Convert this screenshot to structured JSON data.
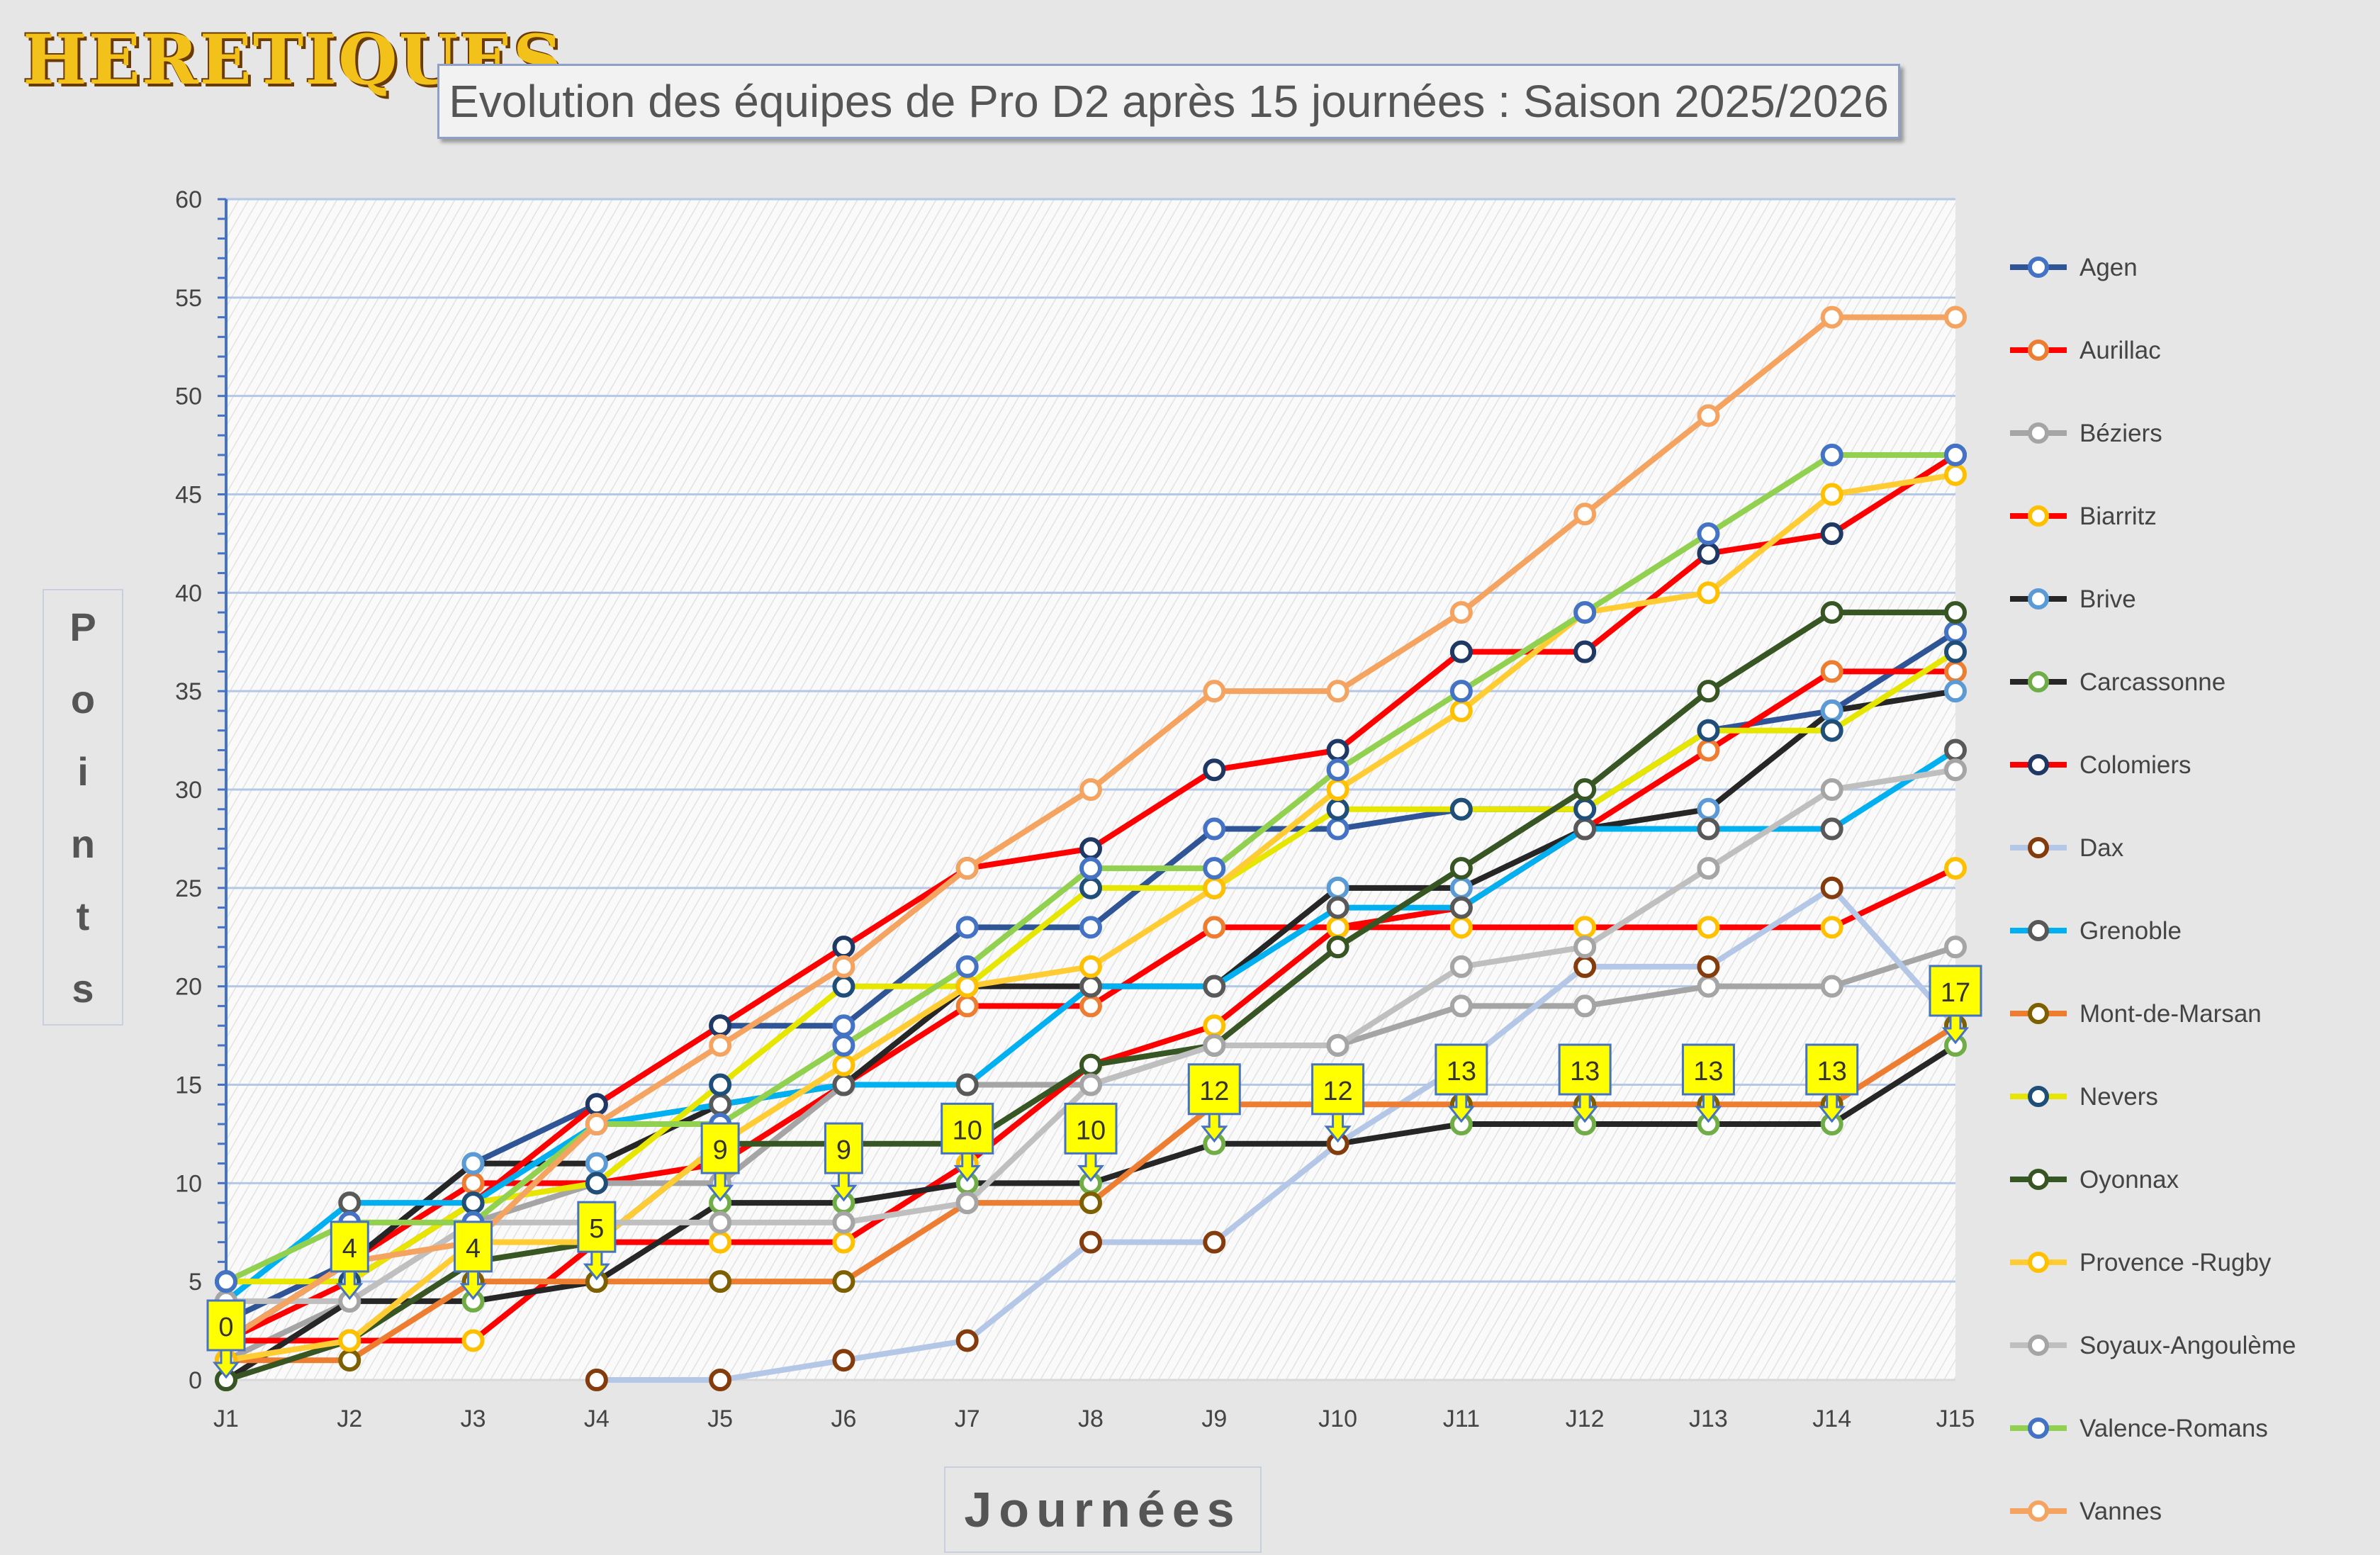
{
  "logo_text": "HERETIQUES",
  "chart_data": {
    "type": "line",
    "title": "Evolution des équipes de Pro D2 après 15 journées : Saison 2025/2026",
    "xlabel": "Journées",
    "ylabel": "Points",
    "ylim": [
      0,
      60
    ],
    "yticks": [
      0,
      5,
      10,
      15,
      20,
      25,
      30,
      35,
      40,
      45,
      50,
      55,
      60
    ],
    "grid": true,
    "legend": "right",
    "categories": [
      "J1",
      "J2",
      "J3",
      "J4",
      "J5",
      "J6",
      "J7",
      "J8",
      "J9",
      "J10",
      "J11",
      "J12",
      "J13",
      "J14",
      "J15"
    ],
    "series": [
      {
        "name": "Agen",
        "line": "#2f5597",
        "marker": "#4472c4",
        "values": [
          3,
          6,
          11,
          14,
          18,
          18,
          23,
          23,
          28,
          28,
          29,
          29,
          33,
          34,
          38
        ]
      },
      {
        "name": "Aurillac",
        "line": "#ff0000",
        "marker": "#ed7d31",
        "values": [
          2,
          6,
          10,
          10,
          11,
          15,
          19,
          19,
          23,
          23,
          24,
          28,
          32,
          36,
          36
        ]
      },
      {
        "name": "Béziers",
        "line": "#a5a5a5",
        "marker": "#a5a5a5",
        "values": [
          1,
          4,
          8,
          10,
          10,
          15,
          15,
          15,
          17,
          17,
          19,
          19,
          20,
          20,
          22
        ]
      },
      {
        "name": "Biarritz",
        "line": "#ff0000",
        "marker": "#ffc000",
        "values": [
          2,
          2,
          2,
          7,
          7,
          7,
          11,
          16,
          18,
          23,
          23,
          23,
          23,
          23,
          26
        ]
      },
      {
        "name": "Brive",
        "line": "#262626",
        "marker": "#5b9bd5",
        "values": [
          2,
          6,
          11,
          11,
          14,
          15,
          20,
          20,
          20,
          25,
          25,
          28,
          29,
          34,
          35
        ]
      },
      {
        "name": "Carcassonne",
        "line": "#262626",
        "marker": "#70ad47",
        "values": [
          0,
          4,
          4,
          5,
          9,
          9,
          10,
          10,
          12,
          12,
          13,
          13,
          13,
          13,
          17
        ]
      },
      {
        "name": "Colomiers",
        "line": "#ff0000",
        "marker": "#1f3864",
        "values": [
          2,
          5,
          9,
          14,
          18,
          22,
          26,
          27,
          31,
          32,
          37,
          37,
          42,
          43,
          47
        ]
      },
      {
        "name": "Dax",
        "line": "#b4c7e7",
        "marker": "#843c0c",
        "values": [
          null,
          null,
          null,
          0,
          0,
          1,
          2,
          7,
          7,
          12,
          16,
          21,
          21,
          25,
          18
        ]
      },
      {
        "name": "Grenoble",
        "line": "#00b0f0",
        "marker": "#595959",
        "values": [
          4,
          9,
          9,
          13,
          14,
          15,
          15,
          20,
          20,
          24,
          24,
          28,
          28,
          28,
          32
        ]
      },
      {
        "name": "Mont-de-Marsan",
        "line": "#ed7d31",
        "marker": "#7f6000",
        "values": [
          1,
          1,
          5,
          5,
          5,
          5,
          9,
          9,
          14,
          14,
          14,
          14,
          14,
          14,
          18
        ]
      },
      {
        "name": "Nevers",
        "line": "#e6e600",
        "marker": "#1f4e79",
        "values": [
          5,
          5,
          9,
          10,
          15,
          20,
          20,
          25,
          25,
          29,
          29,
          29,
          33,
          33,
          37
        ]
      },
      {
        "name": "Oyonnax",
        "line": "#375623",
        "marker": "#375623",
        "values": [
          0,
          2,
          6,
          7,
          12,
          12,
          12,
          16,
          17,
          22,
          26,
          30,
          35,
          39,
          39
        ]
      },
      {
        "name": "Provence -Rugby",
        "line": "#ffcc33",
        "marker": "#ffc000",
        "values": [
          1,
          2,
          7,
          7,
          12,
          16,
          20,
          21,
          25,
          30,
          34,
          39,
          40,
          45,
          46
        ]
      },
      {
        "name": "Soyaux-Angoulème",
        "line": "#bfbfbf",
        "marker": "#a5a5a5",
        "values": [
          4,
          4,
          8,
          8,
          8,
          8,
          9,
          15,
          17,
          17,
          21,
          22,
          26,
          30,
          31
        ]
      },
      {
        "name": "Valence-Romans",
        "line": "#92d050",
        "marker": "#4472c4",
        "values": [
          5,
          8,
          8,
          13,
          13,
          17,
          21,
          26,
          26,
          31,
          35,
          39,
          43,
          47,
          47
        ]
      },
      {
        "name": "Vannes",
        "line": "#f4a460",
        "marker": "#f4a460",
        "values": [
          2,
          6,
          7,
          13,
          17,
          21,
          26,
          30,
          35,
          35,
          39,
          44,
          49,
          54,
          54
        ]
      }
    ],
    "annotations": [
      "0",
      "4",
      "4",
      "5",
      "9",
      "9",
      "10",
      "10",
      "12",
      "12",
      "13",
      "13",
      "13",
      "13",
      "17"
    ]
  }
}
